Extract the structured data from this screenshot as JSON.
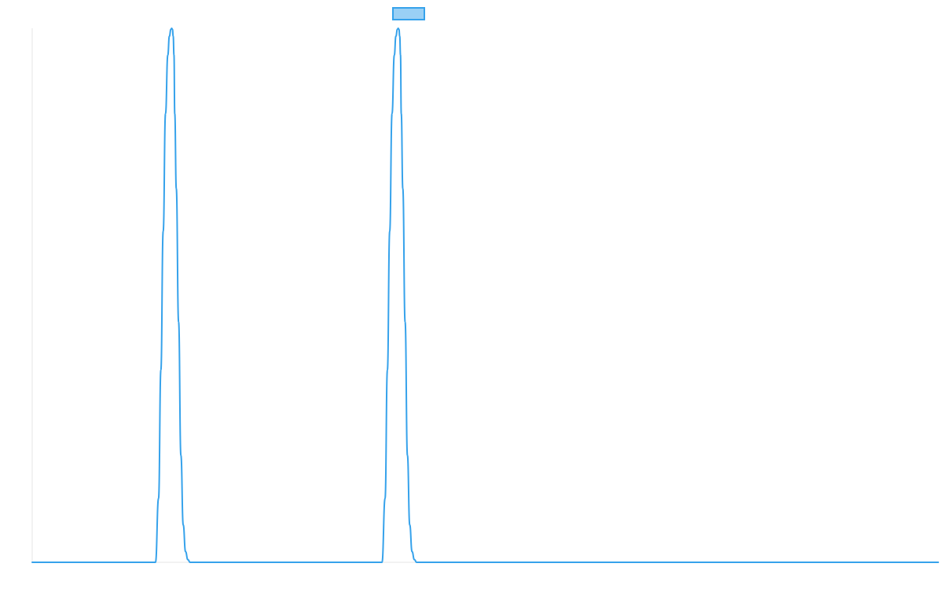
{
  "chart_data": {
    "type": "line",
    "title": "",
    "xlabel": "",
    "ylabel": "",
    "grid": false,
    "legend": {
      "position": "top-center",
      "label": ""
    },
    "colors": {
      "line": "#36a2eb",
      "legend_fill": "#9ad0f5",
      "axis": "#e6e6e6",
      "background": "#ffffff"
    },
    "xlim": [
      0,
      1176
    ],
    "ylim": [
      0,
      1
    ],
    "series": [
      {
        "x": [
          0,
          160,
          164,
          167,
          170,
          173,
          176,
          178,
          180,
          181,
          182,
          183,
          184,
          185,
          187,
          190,
          193,
          196,
          199,
          202,
          205,
          454,
          458,
          461,
          464,
          467,
          470,
          472,
          474,
          475,
          476,
          477,
          478,
          479,
          481,
          484,
          487,
          490,
          493,
          496,
          499,
          1176
        ],
        "values": [
          0,
          0,
          0.12,
          0.36,
          0.62,
          0.84,
          0.95,
          0.985,
          0.998,
          1.0,
          0.998,
          0.985,
          0.95,
          0.84,
          0.7,
          0.45,
          0.2,
          0.07,
          0.02,
          0.005,
          0,
          0,
          0.12,
          0.36,
          0.62,
          0.84,
          0.95,
          0.985,
          0.998,
          1.0,
          0.998,
          0.985,
          0.95,
          0.84,
          0.7,
          0.45,
          0.2,
          0.07,
          0.02,
          0.005,
          0,
          0
        ]
      }
    ]
  }
}
